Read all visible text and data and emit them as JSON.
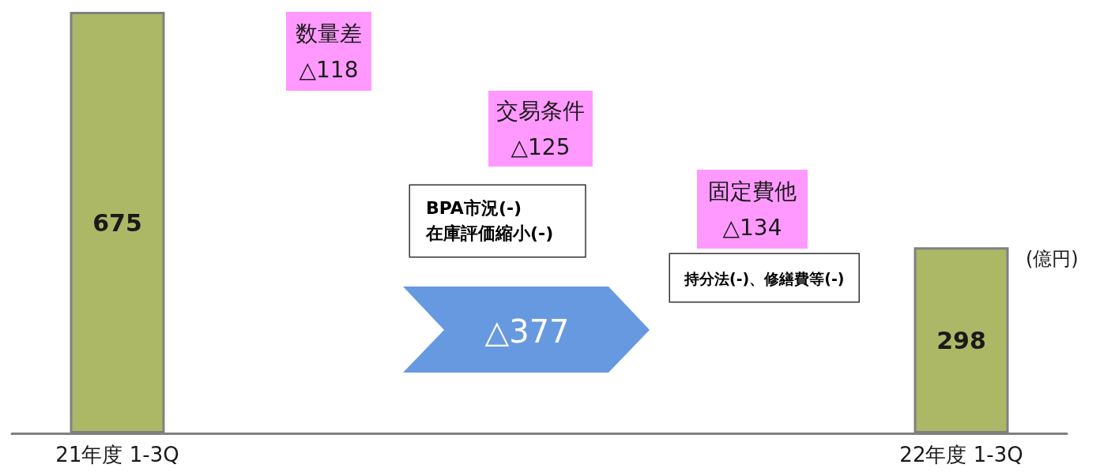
{
  "chart_data": {
    "type": "bar",
    "categories": [
      "21年度 1-3Q",
      null,
      null,
      null,
      "22年度 1-3Q"
    ],
    "values": [
      675,
      null,
      null,
      null,
      298
    ],
    "color": "#acb865",
    "data_labels": true,
    "annotations": [
      "数量差\n△118",
      "交易条件\n△125",
      "BPA市況(-)\n在庫評価縮小(-)",
      "固定費他\n△134",
      "持分法(-)、修繕費等(-)",
      "△377",
      "(億円)"
    ]
  }
}
